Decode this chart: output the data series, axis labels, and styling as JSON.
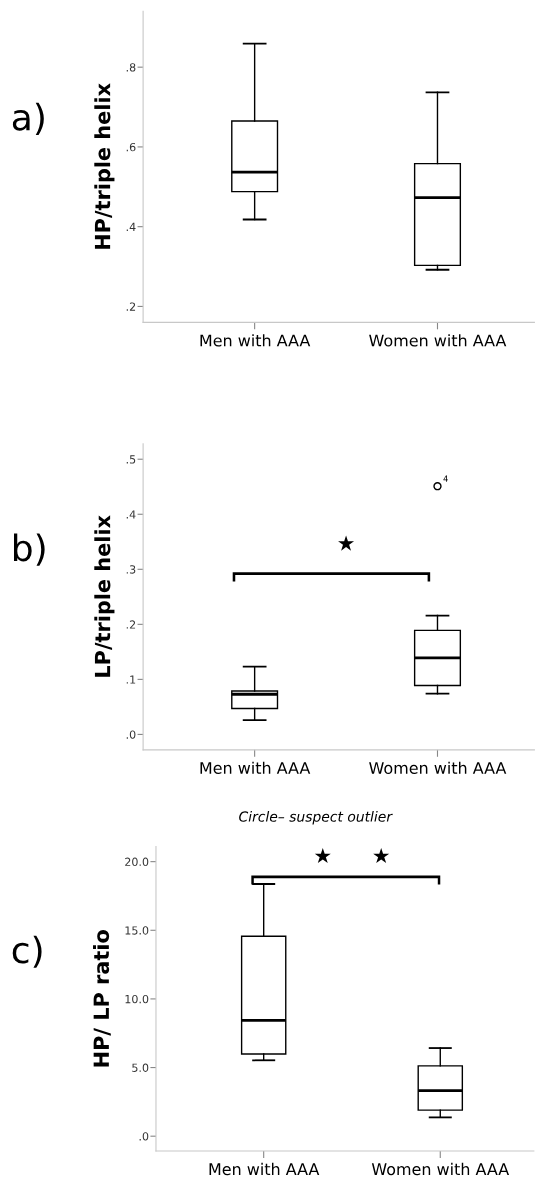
{
  "chart_data": [
    {
      "type": "box",
      "ylabel": "HP/triple helix",
      "categories": [
        "Men with AAA",
        "Women with AAA"
      ],
      "color": "#000000",
      "boxes": [
        {
          "low": 0.418,
          "q1": 0.488,
          "median": 0.537,
          "q3": 0.665,
          "high": 0.859
        },
        {
          "low": 0.292,
          "q1": 0.303,
          "median": 0.473,
          "q3": 0.558,
          "high": 0.737
        }
      ],
      "ylim": [
        0.16,
        0.94
      ],
      "yticks": [
        {
          "value": 0.2,
          "label": ".2"
        },
        {
          "value": 0.4,
          "label": ".4"
        },
        {
          "value": 0.6,
          "label": ".6"
        },
        {
          "value": 0.8,
          "label": ".8"
        }
      ],
      "annotations": [
        "a)"
      ]
    },
    {
      "type": "box",
      "ylabel": "LP/triple helix",
      "categories": [
        "Men with AAA",
        "Women with AAA"
      ],
      "color": "#000000",
      "boxes": [
        {
          "low": 0.026,
          "q1": 0.047,
          "median": 0.073,
          "q3": 0.079,
          "high": 0.123
        },
        {
          "low": 0.074,
          "q1": 0.089,
          "median": 0.139,
          "q3": 0.189,
          "high": 0.216,
          "outliers": [
            0.451
          ]
        }
      ],
      "ylim": [
        -0.028,
        0.528
      ],
      "yticks": [
        {
          "value": 0.0,
          "label": ".0"
        },
        {
          "value": 0.1,
          "label": ".1"
        },
        {
          "value": 0.2,
          "label": ".2"
        },
        {
          "value": 0.3,
          "label": ".3"
        },
        {
          "value": 0.4,
          "label": ".4"
        },
        {
          "value": 0.5,
          "label": ".5"
        }
      ],
      "annotations": [
        "b)",
        "Circle– suspect outlier",
        "4",
        "★"
      ]
    },
    {
      "type": "box",
      "ylabel": "HP/ LP ratio",
      "categories": [
        "Men with AAA",
        "Women with AAA"
      ],
      "color": "#000000",
      "boxes": [
        {
          "low": 5.53,
          "q1": 5.99,
          "median": 8.44,
          "q3": 14.57,
          "high": 18.37
        },
        {
          "low": 1.37,
          "q1": 1.9,
          "median": 3.32,
          "q3": 5.12,
          "high": 6.42
        }
      ],
      "ylim": [
        -1.08,
        21.1
      ],
      "yticks": [
        {
          "value": 0,
          "label": ".0"
        },
        {
          "value": 5,
          "label": "5.0"
        },
        {
          "value": 10,
          "label": "10.0"
        },
        {
          "value": 15,
          "label": "15.0"
        },
        {
          "value": 20,
          "label": "20.0"
        }
      ],
      "annotations": [
        "c)",
        "★      ★"
      ]
    }
  ]
}
